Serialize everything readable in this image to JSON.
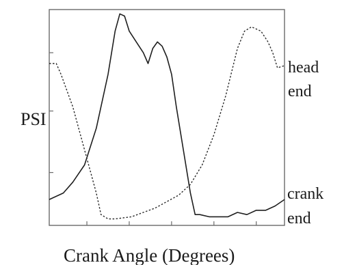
{
  "chart_data": {
    "type": "line",
    "title": "",
    "xlabel": "Crank Angle (Degrees)",
    "ylabel": "PSI",
    "xlim": [
      0,
      100
    ],
    "ylim": [
      0,
      100
    ],
    "grid": false,
    "series": [
      {
        "name": "crank end",
        "style": "solid",
        "color": "#1e1e1e",
        "points": [
          [
            0,
            12
          ],
          [
            6,
            15
          ],
          [
            10,
            20
          ],
          [
            15,
            28
          ],
          [
            20,
            45
          ],
          [
            25,
            70
          ],
          [
            28,
            90
          ],
          [
            30,
            98
          ],
          [
            32,
            97
          ],
          [
            34,
            90
          ],
          [
            37,
            85
          ],
          [
            40,
            80
          ],
          [
            42,
            75
          ],
          [
            44,
            82
          ],
          [
            46,
            85
          ],
          [
            48,
            83
          ],
          [
            50,
            78
          ],
          [
            52,
            70
          ],
          [
            54,
            55
          ],
          [
            57,
            35
          ],
          [
            60,
            15
          ],
          [
            62,
            5
          ],
          [
            64,
            5
          ],
          [
            68,
            4
          ],
          [
            72,
            4
          ],
          [
            76,
            4
          ],
          [
            80,
            6
          ],
          [
            84,
            5
          ],
          [
            88,
            7
          ],
          [
            92,
            7
          ],
          [
            96,
            9
          ],
          [
            100,
            12
          ]
        ]
      },
      {
        "name": "head end",
        "style": "dashed",
        "color": "#2a2a2a",
        "points": [
          [
            0,
            75
          ],
          [
            3,
            75
          ],
          [
            5,
            70
          ],
          [
            10,
            55
          ],
          [
            15,
            35
          ],
          [
            20,
            15
          ],
          [
            22,
            5
          ],
          [
            25,
            3
          ],
          [
            28,
            3
          ],
          [
            35,
            4
          ],
          [
            40,
            6
          ],
          [
            45,
            8
          ],
          [
            50,
            11
          ],
          [
            55,
            14
          ],
          [
            60,
            19
          ],
          [
            65,
            28
          ],
          [
            70,
            42
          ],
          [
            75,
            60
          ],
          [
            80,
            82
          ],
          [
            83,
            90
          ],
          [
            86,
            92
          ],
          [
            90,
            90
          ],
          [
            93,
            85
          ],
          [
            95,
            80
          ],
          [
            97,
            73
          ],
          [
            100,
            74
          ]
        ]
      }
    ],
    "legend_placement": "right, labels placed next to line ends",
    "legend_labels": [
      {
        "series": "head end",
        "line1": "head",
        "line2": "end"
      },
      {
        "series": "crank end",
        "line1": "crank",
        "line2": "end"
      }
    ]
  }
}
